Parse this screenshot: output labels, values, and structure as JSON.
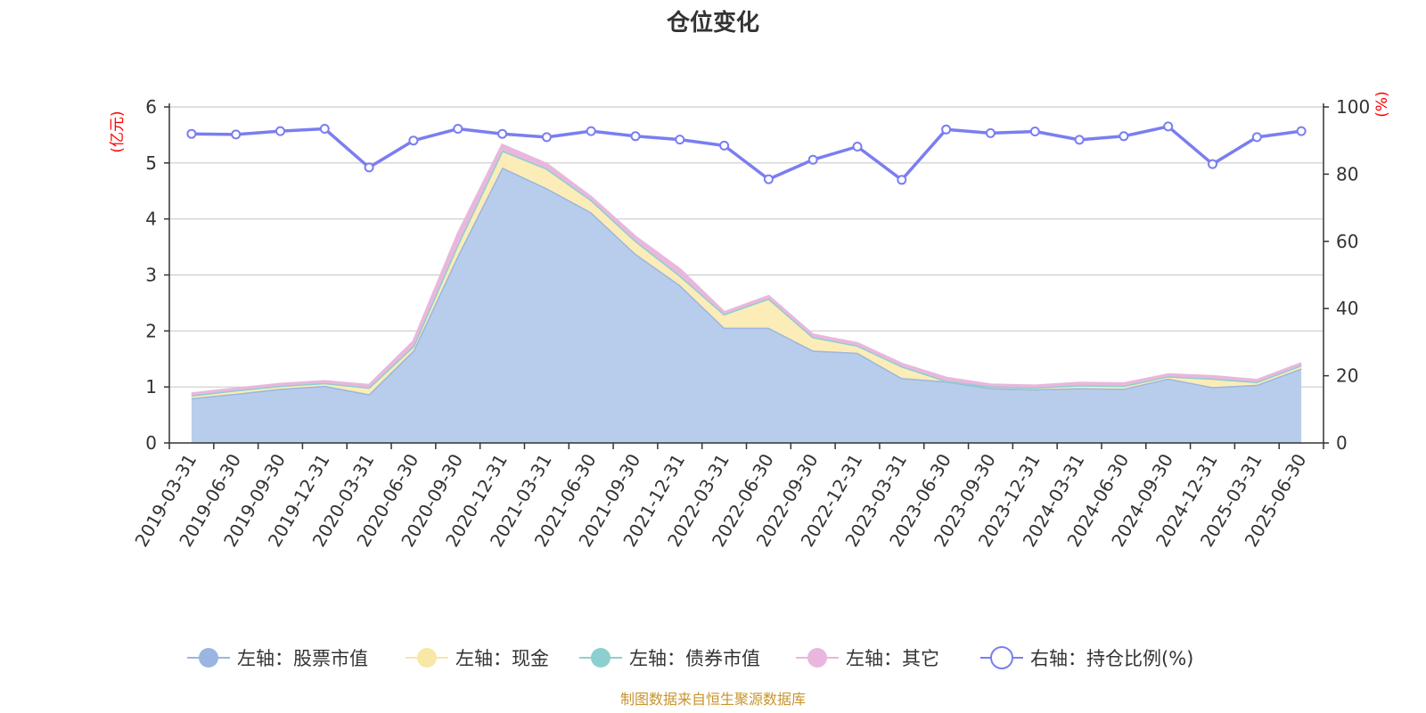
{
  "chart_data": {
    "type": "area",
    "title": "仓位变化",
    "left_axis_unit": "(亿元)",
    "right_axis_unit": "(%)",
    "ylim_left": [
      0,
      6
    ],
    "yticks_left": [
      0,
      1,
      2,
      3,
      4,
      5,
      6
    ],
    "ylim_right": [
      0,
      100
    ],
    "yticks_right": [
      0,
      20,
      40,
      60,
      80,
      100
    ],
    "grid": true,
    "legend_position": "bottom",
    "x": [
      "2019-03-31",
      "2019-06-30",
      "2019-09-30",
      "2019-12-31",
      "2020-03-31",
      "2020-06-30",
      "2020-09-30",
      "2020-12-31",
      "2021-03-31",
      "2021-06-30",
      "2021-09-30",
      "2021-12-31",
      "2022-03-31",
      "2022-06-30",
      "2022-09-30",
      "2022-12-31",
      "2023-03-31",
      "2023-06-30",
      "2023-09-30",
      "2023-12-31",
      "2024-03-31",
      "2024-06-30",
      "2024-09-30",
      "2024-12-31",
      "2025-03-31",
      "2025-06-30"
    ],
    "series": [
      {
        "name": "左轴：股票市值",
        "axis": "left",
        "color": "#9ab6e0",
        "fill": "#b8cdeb",
        "values": [
          0.8,
          0.88,
          0.97,
          1.02,
          0.87,
          1.65,
          3.35,
          4.92,
          4.55,
          4.12,
          3.38,
          2.82,
          2.06,
          2.06,
          1.65,
          1.61,
          1.16,
          1.1,
          0.98,
          0.96,
          0.98,
          0.97,
          1.15,
          1.0,
          1.04,
          1.33
        ]
      },
      {
        "name": "左轴：现金",
        "axis": "left",
        "color": "#f8e7a5",
        "fill": "#fbecb8",
        "values": [
          0.05,
          0.06,
          0.05,
          0.05,
          0.12,
          0.08,
          0.2,
          0.3,
          0.35,
          0.22,
          0.23,
          0.17,
          0.24,
          0.52,
          0.24,
          0.13,
          0.21,
          0.01,
          0.03,
          0.03,
          0.05,
          0.05,
          0.04,
          0.15,
          0.05,
          0.06
        ]
      },
      {
        "name": "左轴：债券市值",
        "axis": "left",
        "color": "#8dcfcf",
        "fill": "#8dcfcf",
        "values": [
          0,
          0,
          0,
          0,
          0,
          0,
          0,
          0,
          0,
          0,
          0,
          0,
          0,
          0,
          0,
          0,
          0,
          0,
          0,
          0,
          0,
          0,
          0,
          0,
          0,
          0
        ]
      },
      {
        "name": "左轴：其它",
        "axis": "left",
        "color": "#e9b7dd",
        "fill": "#e9b7dd",
        "values": [
          0.03,
          0.03,
          0.03,
          0.03,
          0.04,
          0.08,
          0.18,
          0.1,
          0.08,
          0.05,
          0.07,
          0.11,
          0.03,
          0.04,
          0.04,
          0.04,
          0.04,
          0.05,
          0.03,
          0.03,
          0.04,
          0.04,
          0.03,
          0.04,
          0.03,
          0.03
        ]
      },
      {
        "name": "右轴：持仓比例(%)",
        "axis": "right",
        "color": "#7a7ef0",
        "fill": "none",
        "values": [
          92.0,
          91.8,
          92.8,
          93.5,
          82.0,
          90.0,
          93.5,
          92.0,
          91.0,
          92.8,
          91.3,
          90.3,
          88.5,
          78.5,
          84.3,
          88.2,
          78.3,
          93.3,
          92.2,
          92.7,
          90.2,
          91.3,
          94.2,
          83.0,
          91.0,
          92.8
        ]
      }
    ]
  },
  "source_note": "制图数据来自恒生聚源数据库"
}
